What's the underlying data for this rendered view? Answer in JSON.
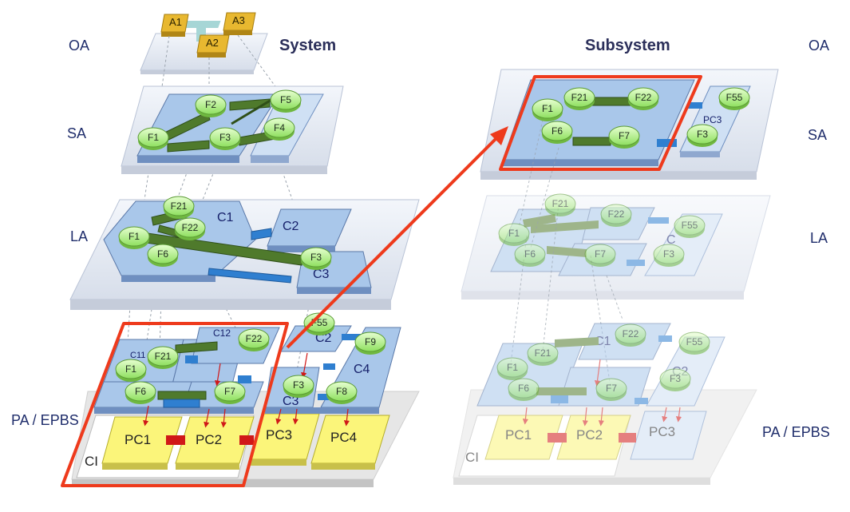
{
  "titles": {
    "system": "System",
    "subsystem": "Subsystem"
  },
  "levels": {
    "oa": "OA",
    "sa": "SA",
    "la": "LA",
    "pa": "PA / EPBS"
  },
  "actors": [
    "A1",
    "A3",
    "A2"
  ],
  "system": {
    "sa_functions": [
      "F1",
      "F2",
      "F3",
      "F4",
      "F5"
    ],
    "la_components": {
      "c1": "C1",
      "c2": "C2",
      "c3": "C3"
    },
    "la_functions": [
      "F1",
      "F21",
      "F22",
      "F6",
      "F3"
    ],
    "pa_components": {
      "c11": "C11",
      "c12": "C12",
      "c2": "C2",
      "c3": "C3",
      "c4": "C4"
    },
    "pa_functions": [
      "F1",
      "F21",
      "F22",
      "F6",
      "F7",
      "F55",
      "F3",
      "F8",
      "F9"
    ],
    "physical": [
      "PC1",
      "PC2",
      "PC3",
      "PC4"
    ],
    "ci": "CI"
  },
  "subsystem": {
    "sa_functions": [
      "F1",
      "F21",
      "F22",
      "F6",
      "F7",
      "F55",
      "F3"
    ],
    "sa_pc": "PC3",
    "la_functions": [
      "F21",
      "F22",
      "F55",
      "F1",
      "F6",
      "F7",
      "F3"
    ],
    "la_components": {
      "c": "C"
    },
    "pa_components": {
      "c1": "C1",
      "c2": "C2"
    },
    "pa_functions": [
      "F22",
      "F21",
      "F55",
      "F1",
      "F3",
      "F6",
      "F7"
    ],
    "physical": [
      "PC1",
      "PC2",
      "PC3"
    ],
    "ci": "CI"
  },
  "colors": {
    "function_fill": "#b8f28a",
    "component_fill": "#a9c7ea",
    "actor_fill": "#e8b830",
    "pc_fill": "#fbf57a",
    "highlight": "#ee3a1c",
    "exchange_green": "#4f7a2c",
    "exchange_blue": "#2f7fd0"
  }
}
